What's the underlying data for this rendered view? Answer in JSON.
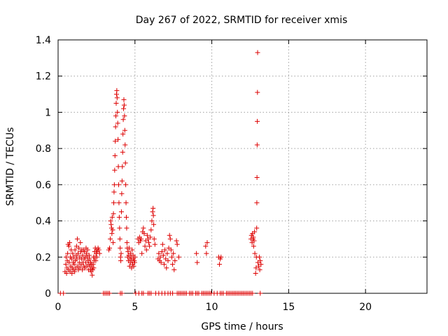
{
  "chart_data": {
    "type": "scatter",
    "title": "Day 267 of 2022, SRMTID for receiver xmis",
    "xlabel": "GPS time / hours",
    "ylabel": "SRMTID / TECUs",
    "xlim": [
      0,
      24
    ],
    "ylim": [
      0,
      1.4
    ],
    "xticks": [
      0,
      5,
      10,
      15,
      20
    ],
    "xtick_labels": [
      "0",
      "5",
      "10",
      "15",
      "20"
    ],
    "yticks": [
      0,
      0.2,
      0.4,
      0.6,
      0.8,
      1.0,
      1.2,
      1.4
    ],
    "ytick_labels": [
      "0",
      "0.2",
      "0.4",
      "0.6",
      "0.8",
      "1",
      "1.2",
      "1.4"
    ],
    "grid": true,
    "marker": "+",
    "color": "#dd0000",
    "series": [
      {
        "name": "SRMTID",
        "points": [
          [
            0.15,
            0
          ],
          [
            0.35,
            0
          ],
          [
            2.95,
            0
          ],
          [
            3.05,
            0
          ],
          [
            3.15,
            0
          ],
          [
            3.25,
            0
          ],
          [
            3.35,
            0
          ],
          [
            4.05,
            0
          ],
          [
            4.15,
            0
          ],
          [
            5.05,
            0
          ],
          [
            5.25,
            0
          ],
          [
            5.45,
            0
          ],
          [
            5.55,
            0
          ],
          [
            5.85,
            0
          ],
          [
            5.95,
            0
          ],
          [
            6.05,
            0
          ],
          [
            6.35,
            0
          ],
          [
            6.55,
            0
          ],
          [
            6.75,
            0
          ],
          [
            6.95,
            0
          ],
          [
            7.15,
            0
          ],
          [
            7.3,
            0
          ],
          [
            7.45,
            0
          ],
          [
            7.75,
            0
          ],
          [
            7.85,
            0
          ],
          [
            7.95,
            0
          ],
          [
            8.05,
            0
          ],
          [
            8.15,
            0
          ],
          [
            8.25,
            0
          ],
          [
            8.35,
            0
          ],
          [
            8.55,
            0
          ],
          [
            8.65,
            0
          ],
          [
            8.75,
            0
          ],
          [
            8.95,
            0
          ],
          [
            9.05,
            0
          ],
          [
            9.15,
            0
          ],
          [
            9.35,
            0
          ],
          [
            9.45,
            0
          ],
          [
            9.55,
            0
          ],
          [
            9.65,
            0
          ],
          [
            9.75,
            0
          ],
          [
            9.85,
            0
          ],
          [
            9.95,
            0
          ],
          [
            10.15,
            0
          ],
          [
            10.35,
            0
          ],
          [
            10.55,
            0
          ],
          [
            10.65,
            0
          ],
          [
            10.75,
            0
          ],
          [
            10.95,
            0
          ],
          [
            11.05,
            0
          ],
          [
            11.15,
            0
          ],
          [
            11.25,
            0
          ],
          [
            11.35,
            0
          ],
          [
            11.45,
            0
          ],
          [
            11.55,
            0
          ],
          [
            11.65,
            0
          ],
          [
            11.75,
            0
          ],
          [
            11.85,
            0
          ],
          [
            11.95,
            0
          ],
          [
            12.05,
            0
          ],
          [
            12.15,
            0
          ],
          [
            12.25,
            0
          ],
          [
            12.35,
            0
          ],
          [
            12.45,
            0
          ],
          [
            12.55,
            0
          ],
          [
            12.65,
            0
          ],
          [
            13.15,
            0
          ],
          [
            0.45,
            0.12
          ],
          [
            0.5,
            0.16
          ],
          [
            0.52,
            0.2
          ],
          [
            0.55,
            0.11
          ],
          [
            0.58,
            0.14
          ],
          [
            0.6,
            0.18
          ],
          [
            0.62,
            0.22
          ],
          [
            0.65,
            0.27
          ],
          [
            0.68,
            0.13
          ],
          [
            0.7,
            0.26
          ],
          [
            0.72,
            0.17
          ],
          [
            0.75,
            0.28
          ],
          [
            0.78,
            0.12
          ],
          [
            0.8,
            0.2
          ],
          [
            0.82,
            0.15
          ],
          [
            0.85,
            0.24
          ],
          [
            0.88,
            0.19
          ],
          [
            0.9,
            0.11
          ],
          [
            0.92,
            0.14
          ],
          [
            0.95,
            0.22
          ],
          [
            0.98,
            0.17
          ],
          [
            1.0,
            0.13
          ],
          [
            1.02,
            0.2
          ],
          [
            1.05,
            0.16
          ],
          [
            1.08,
            0.12
          ],
          [
            1.1,
            0.24
          ],
          [
            1.12,
            0.18
          ],
          [
            1.15,
            0.14
          ],
          [
            1.18,
            0.21
          ],
          [
            1.2,
            0.26
          ],
          [
            1.22,
            0.19
          ],
          [
            1.25,
            0.3
          ],
          [
            1.28,
            0.15
          ],
          [
            1.3,
            0.22
          ],
          [
            1.32,
            0.13
          ],
          [
            1.35,
            0.25
          ],
          [
            1.38,
            0.17
          ],
          [
            1.4,
            0.2
          ],
          [
            1.42,
            0.14
          ],
          [
            1.45,
            0.28
          ],
          [
            1.48,
            0.23
          ],
          [
            1.5,
            0.16
          ],
          [
            1.52,
            0.19
          ],
          [
            1.55,
            0.24
          ],
          [
            1.58,
            0.13
          ],
          [
            1.6,
            0.21
          ],
          [
            1.62,
            0.17
          ],
          [
            1.65,
            0.24
          ],
          [
            1.68,
            0.15
          ],
          [
            1.7,
            0.19
          ],
          [
            1.72,
            0.23
          ],
          [
            1.75,
            0.14
          ],
          [
            1.78,
            0.2
          ],
          [
            1.8,
            0.17
          ],
          [
            1.82,
            0.25
          ],
          [
            1.85,
            0.22
          ],
          [
            1.88,
            0.15
          ],
          [
            1.9,
            0.2
          ],
          [
            1.92,
            0.24
          ],
          [
            1.95,
            0.18
          ],
          [
            1.98,
            0.13
          ],
          [
            2.0,
            0.16
          ],
          [
            2.02,
            0.21
          ],
          [
            2.05,
            0.19
          ],
          [
            2.08,
            0.15
          ],
          [
            2.1,
            0.13
          ],
          [
            2.12,
            0.17
          ],
          [
            2.15,
            0.12
          ],
          [
            2.18,
            0.16
          ],
          [
            2.2,
            0.14
          ],
          [
            2.22,
            0.1
          ],
          [
            2.25,
            0.13
          ],
          [
            2.28,
            0.16
          ],
          [
            2.3,
            0.2
          ],
          [
            2.32,
            0.14
          ],
          [
            2.35,
            0.18
          ],
          [
            2.38,
            0.23
          ],
          [
            2.4,
            0.2
          ],
          [
            2.42,
            0.25
          ],
          [
            2.45,
            0.18
          ],
          [
            2.48,
            0.22
          ],
          [
            2.5,
            0.24
          ],
          [
            2.52,
            0.2
          ],
          [
            2.55,
            0.23
          ],
          [
            2.6,
            0.25
          ],
          [
            2.65,
            0.24
          ],
          [
            2.7,
            0.22
          ],
          [
            3.3,
            0.24
          ],
          [
            3.35,
            0.25
          ],
          [
            3.4,
            0.3
          ],
          [
            3.42,
            0.4
          ],
          [
            3.45,
            0.38
          ],
          [
            3.48,
            0.36
          ],
          [
            3.5,
            0.33
          ],
          [
            3.52,
            0.42
          ],
          [
            3.55,
            0.35
          ],
          [
            3.58,
            0.28
          ],
          [
            3.6,
            0.44
          ],
          [
            3.62,
            0.5
          ],
          [
            3.64,
            0.56
          ],
          [
            3.66,
            0.6
          ],
          [
            3.68,
            0.68
          ],
          [
            3.7,
            0.76
          ],
          [
            3.72,
            0.84
          ],
          [
            3.74,
            0.92
          ],
          [
            3.76,
            0.98
          ],
          [
            3.78,
            1.05
          ],
          [
            3.8,
            1.1
          ],
          [
            3.82,
            1.12
          ],
          [
            3.84,
            1.08
          ],
          [
            3.86,
            1.0
          ],
          [
            3.88,
            0.94
          ],
          [
            3.9,
            0.85
          ],
          [
            3.92,
            0.7
          ],
          [
            3.94,
            0.6
          ],
          [
            3.96,
            0.5
          ],
          [
            3.98,
            0.42
          ],
          [
            4.0,
            0.36
          ],
          [
            4.02,
            0.3
          ],
          [
            4.04,
            0.25
          ],
          [
            4.06,
            0.2
          ],
          [
            4.08,
            0.18
          ],
          [
            4.1,
            0.22
          ],
          [
            4.12,
            0.45
          ],
          [
            4.14,
            0.55
          ],
          [
            4.16,
            0.62
          ],
          [
            4.18,
            0.7
          ],
          [
            4.2,
            0.78
          ],
          [
            4.22,
            0.88
          ],
          [
            4.24,
            0.96
          ],
          [
            4.26,
            1.02
          ],
          [
            4.28,
            1.07
          ],
          [
            4.3,
            1.04
          ],
          [
            4.32,
            0.98
          ],
          [
            4.34,
            0.9
          ],
          [
            4.36,
            0.82
          ],
          [
            4.38,
            0.72
          ],
          [
            4.4,
            0.6
          ],
          [
            4.42,
            0.5
          ],
          [
            4.44,
            0.42
          ],
          [
            4.46,
            0.36
          ],
          [
            4.48,
            0.28
          ],
          [
            4.5,
            0.25
          ],
          [
            4.52,
            0.2
          ],
          [
            4.55,
            0.23
          ],
          [
            4.58,
            0.18
          ],
          [
            4.6,
            0.21
          ],
          [
            4.62,
            0.25
          ],
          [
            4.65,
            0.15
          ],
          [
            4.68,
            0.19
          ],
          [
            4.7,
            0.17
          ],
          [
            4.72,
            0.22
          ],
          [
            4.75,
            0.2
          ],
          [
            4.78,
            0.14
          ],
          [
            4.8,
            0.18
          ],
          [
            4.82,
            0.24
          ],
          [
            4.85,
            0.16
          ],
          [
            4.88,
            0.21
          ],
          [
            4.9,
            0.19
          ],
          [
            4.92,
            0.15
          ],
          [
            4.95,
            0.18
          ],
          [
            4.98,
            0.17
          ],
          [
            5.0,
            0.2
          ],
          [
            5.2,
            0.3
          ],
          [
            5.25,
            0.28
          ],
          [
            5.3,
            0.31
          ],
          [
            5.35,
            0.29
          ],
          [
            5.4,
            0.3
          ],
          [
            5.45,
            0.22
          ],
          [
            5.5,
            0.34
          ],
          [
            5.55,
            0.36
          ],
          [
            5.6,
            0.33
          ],
          [
            5.65,
            0.26
          ],
          [
            5.7,
            0.29
          ],
          [
            5.75,
            0.24
          ],
          [
            5.8,
            0.32
          ],
          [
            5.85,
            0.3
          ],
          [
            5.9,
            0.28
          ],
          [
            5.95,
            0.26
          ],
          [
            6.0,
            0.31
          ],
          [
            6.05,
            0.35
          ],
          [
            6.1,
            0.4
          ],
          [
            6.15,
            0.45
          ],
          [
            6.18,
            0.47
          ],
          [
            6.2,
            0.43
          ],
          [
            6.22,
            0.38
          ],
          [
            6.25,
            0.3
          ],
          [
            6.3,
            0.27
          ],
          [
            6.5,
            0.19
          ],
          [
            6.55,
            0.22
          ],
          [
            6.6,
            0.18
          ],
          [
            6.65,
            0.2
          ],
          [
            6.7,
            0.17
          ],
          [
            6.75,
            0.23
          ],
          [
            6.8,
            0.27
          ],
          [
            6.85,
            0.21
          ],
          [
            6.9,
            0.16
          ],
          [
            6.95,
            0.24
          ],
          [
            7.0,
            0.19
          ],
          [
            7.05,
            0.14
          ],
          [
            7.1,
            0.22
          ],
          [
            7.15,
            0.18
          ],
          [
            7.2,
            0.25
          ],
          [
            7.25,
            0.32
          ],
          [
            7.3,
            0.3
          ],
          [
            7.35,
            0.24
          ],
          [
            7.4,
            0.2
          ],
          [
            7.45,
            0.16
          ],
          [
            7.5,
            0.22
          ],
          [
            7.55,
            0.13
          ],
          [
            7.6,
            0.18
          ],
          [
            7.7,
            0.29
          ],
          [
            7.75,
            0.27
          ],
          [
            7.85,
            0.2
          ],
          [
            9.0,
            0.22
          ],
          [
            9.05,
            0.17
          ],
          [
            9.6,
            0.26
          ],
          [
            9.65,
            0.22
          ],
          [
            9.7,
            0.28
          ],
          [
            10.45,
            0.2
          ],
          [
            10.5,
            0.16
          ],
          [
            10.55,
            0.19
          ],
          [
            10.6,
            0.2
          ],
          [
            12.55,
            0.3
          ],
          [
            12.58,
            0.32
          ],
          [
            12.62,
            0.28
          ],
          [
            12.65,
            0.33
          ],
          [
            12.68,
            0.3
          ],
          [
            12.7,
            0.31
          ],
          [
            12.72,
            0.26
          ],
          [
            12.75,
            0.29
          ],
          [
            12.78,
            0.34
          ],
          [
            12.8,
            0.22
          ],
          [
            12.85,
            0.11
          ],
          [
            12.88,
            0.14
          ],
          [
            12.9,
            0.2
          ],
          [
            12.92,
            0.36
          ],
          [
            12.93,
            0.5
          ],
          [
            12.94,
            0.64
          ],
          [
            12.95,
            0.82
          ],
          [
            12.96,
            0.95
          ],
          [
            12.97,
            1.11
          ],
          [
            12.98,
            1.33
          ],
          [
            13.0,
            0.17
          ],
          [
            13.05,
            0.15
          ],
          [
            13.1,
            0.2
          ],
          [
            13.12,
            0.13
          ],
          [
            13.15,
            0.18
          ],
          [
            13.2,
            0.16
          ]
        ]
      }
    ]
  }
}
